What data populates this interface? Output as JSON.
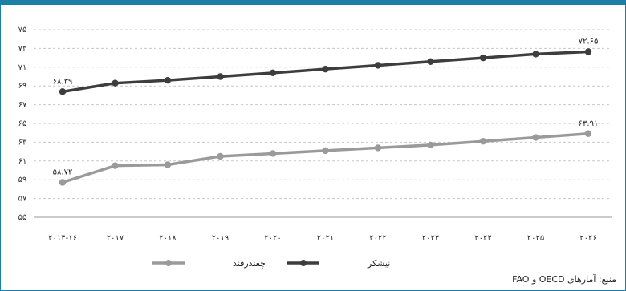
{
  "chart_data": {
    "type": "line",
    "categories": [
      "۲۰۱۴-۱۶",
      "۲۰۱۷",
      "۲۰۱۸",
      "۲۰۱۹",
      "۲۰۲۰",
      "۲۰۲۱",
      "۲۰۲۲",
      "۲۰۲۳",
      "۲۰۲۴",
      "۲۰۲۵",
      "۲۰۲۶"
    ],
    "series": [
      {
        "name": "نیشکر",
        "color": "#3d3d3d",
        "values": [
          68.39,
          69.3,
          69.6,
          70.0,
          70.4,
          70.8,
          71.2,
          71.6,
          72.0,
          72.4,
          72.65
        ],
        "data_labels": [
          {
            "index": 0,
            "text": "۶۸.۳۹"
          },
          {
            "index": 10,
            "text": "۷۲.۶۵"
          }
        ]
      },
      {
        "name": "چغندرقند",
        "color": "#9a9a9a",
        "values": [
          58.72,
          60.5,
          60.6,
          61.5,
          61.8,
          62.1,
          62.4,
          62.7,
          63.1,
          63.5,
          63.91
        ],
        "data_labels": [
          {
            "index": 0,
            "text": "۵۸.۷۲"
          },
          {
            "index": 10,
            "text": "۶۳.۹۱"
          }
        ]
      }
    ],
    "yticks": [
      55,
      57,
      59,
      61,
      63,
      65,
      67,
      69,
      71,
      73,
      75
    ],
    "ytick_labels": [
      "۵۵",
      "۵۷",
      "۵۹",
      "۶۱",
      "۶۳",
      "۶۵",
      "۶۷",
      "۶۹",
      "۷۱",
      "۷۳",
      "۷۵"
    ],
    "ylim": [
      55,
      75
    ],
    "grid": true,
    "legend_position": "bottom-center"
  },
  "source": "منبع: آمارهای OECD و FAO"
}
